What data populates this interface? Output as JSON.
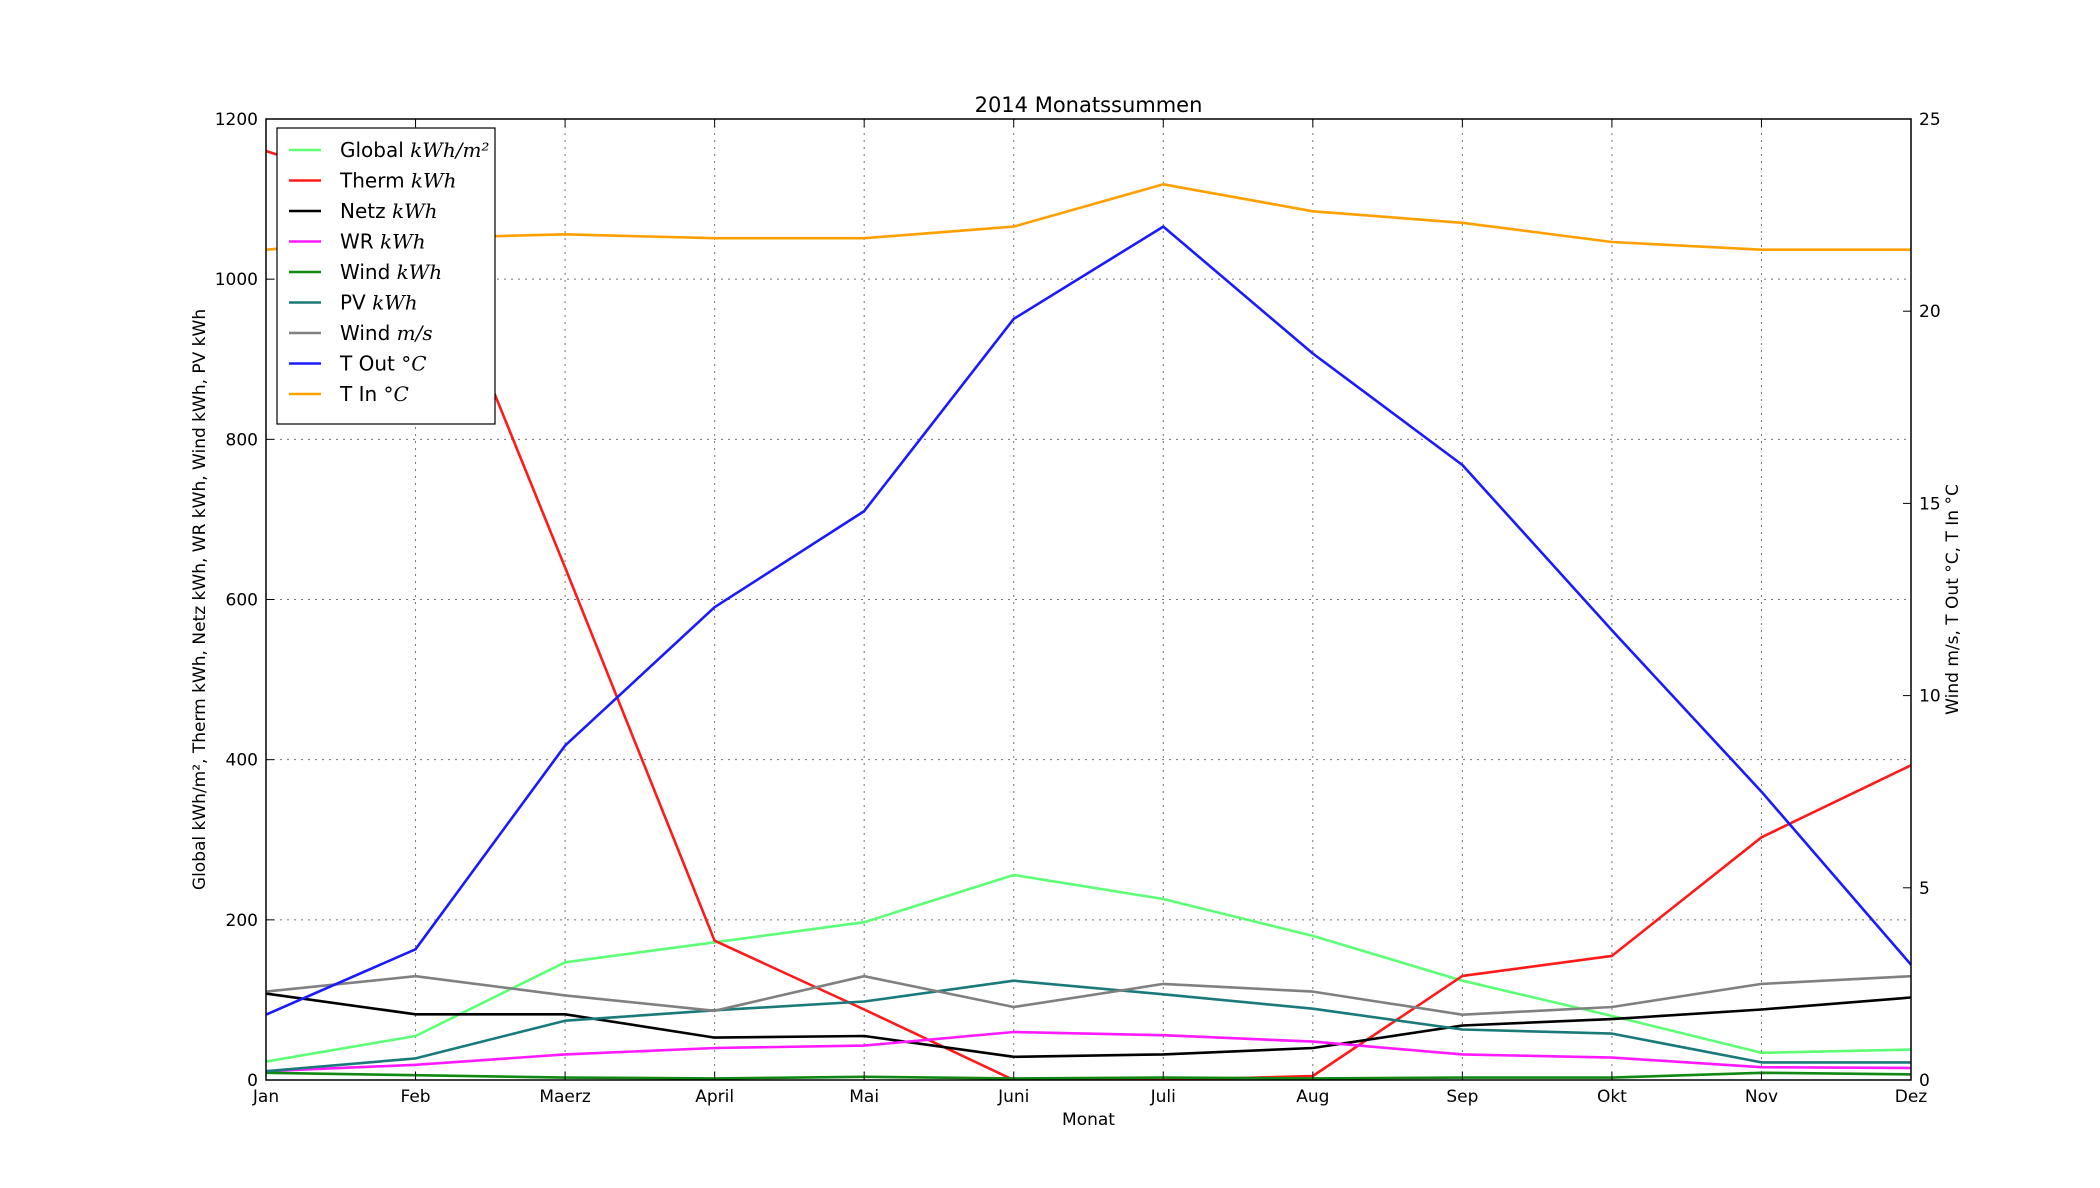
{
  "chart_data": {
    "type": "line",
    "title": "2014 Monatssummen",
    "xlabel": "Monat",
    "ylabel_left": "Global kWh/m², Therm kWh, Netz kWh, WR kWh, Wind kWh, PV kWh",
    "ylabel_right": "Wind m/s, T Out °C, T In °C",
    "categories": [
      "Jan",
      "Feb",
      "Maerz",
      "April",
      "Mai",
      "Juni",
      "Juli",
      "Aug",
      "Sep",
      "Okt",
      "Nov",
      "Dez"
    ],
    "ylim_left": [
      0,
      1200
    ],
    "yticks_left": [
      0,
      200,
      400,
      600,
      800,
      1000,
      1200
    ],
    "ylim_right": [
      0,
      25
    ],
    "yticks_right": [
      0,
      5,
      10,
      15,
      20,
      25
    ],
    "grid": true,
    "legend_position": "top-left",
    "series": [
      {
        "name": "Global kWh/m²",
        "label_plain": "Global",
        "label_unit": "kWh/m²",
        "axis": "left",
        "color": "#5cff76",
        "values": [
          23,
          55,
          147,
          172,
          197,
          256,
          226,
          180,
          124,
          80,
          34,
          38
        ]
      },
      {
        "name": "Therm kWh",
        "label_plain": "Therm",
        "label_unit": "kWh",
        "axis": "left",
        "color": "#ff1a1a",
        "values": [
          1160,
          1100,
          640,
          174,
          88,
          0,
          0,
          5,
          130,
          155,
          303,
          393
        ]
      },
      {
        "name": "Netz kWh",
        "label_plain": "Netz",
        "label_unit": "kWh",
        "axis": "left",
        "color": "#000000",
        "values": [
          108,
          82,
          82,
          53,
          55,
          29,
          32,
          40,
          68,
          76,
          88,
          103
        ]
      },
      {
        "name": "WR kWh",
        "label_plain": "WR",
        "label_unit": "kWh",
        "axis": "left",
        "color": "#ff1aff",
        "values": [
          11,
          19,
          32,
          40,
          43,
          60,
          56,
          48,
          32,
          28,
          16,
          15
        ]
      },
      {
        "name": "Wind kWh",
        "label_plain": "Wind",
        "label_unit": "kWh",
        "axis": "left",
        "color": "#118811",
        "values": [
          9,
          6,
          3,
          2,
          4,
          2,
          3,
          2,
          3,
          3,
          9,
          7
        ]
      },
      {
        "name": "PV kWh",
        "label_plain": "PV",
        "label_unit": "kWh",
        "axis": "left",
        "color": "#1a7a7a",
        "values": [
          11,
          27,
          74,
          87,
          98,
          124,
          107,
          89,
          63,
          58,
          22,
          22
        ]
      },
      {
        "name": "Wind m/s",
        "label_plain": "Wind",
        "label_unit": "m/s",
        "axis": "right",
        "color": "#808080",
        "values": [
          2.3,
          2.7,
          2.2,
          1.8,
          2.7,
          1.9,
          2.5,
          2.3,
          1.7,
          1.9,
          2.5,
          2.7
        ]
      },
      {
        "name": "T Out °C",
        "label_plain": "T Out",
        "label_unit": "°C",
        "axis": "right",
        "color": "#1a1aff",
        "values": [
          1.7,
          3.4,
          8.7,
          12.3,
          14.8,
          19.8,
          22.2,
          18.9,
          16.0,
          11.7,
          7.5,
          3.0
        ]
      },
      {
        "name": "T In °C",
        "label_plain": "T In",
        "label_unit": "°C",
        "axis": "right",
        "color": "#ffa000",
        "values": [
          21.6,
          21.9,
          22.0,
          21.9,
          21.9,
          22.2,
          23.3,
          22.6,
          22.3,
          21.8,
          21.6,
          21.6
        ]
      }
    ]
  }
}
